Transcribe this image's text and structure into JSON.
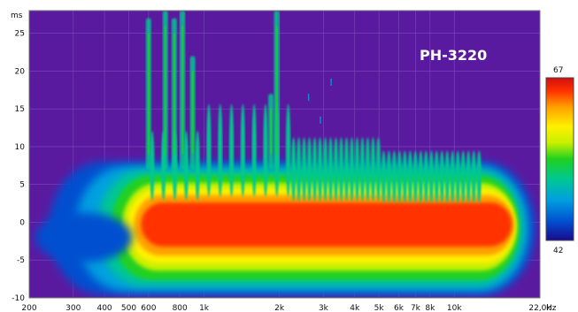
{
  "chart_data": {
    "type": "heatmap",
    "title": "PH-3220",
    "y_unit": "ms",
    "x_unit": "Hz",
    "x_scale": "log",
    "xlim": [
      200,
      22000
    ],
    "ylim": [
      -10,
      28
    ],
    "x_ticks": [
      {
        "value": 200,
        "label": "200"
      },
      {
        "value": 300,
        "label": "300"
      },
      {
        "value": 400,
        "label": "400"
      },
      {
        "value": 500,
        "label": "500"
      },
      {
        "value": 600,
        "label": "600"
      },
      {
        "value": 800,
        "label": "800"
      },
      {
        "value": 1000,
        "label": "1k"
      },
      {
        "value": 2000,
        "label": "2k"
      },
      {
        "value": 3000,
        "label": "3k"
      },
      {
        "value": 4000,
        "label": "4k"
      },
      {
        "value": 5000,
        "label": "5k"
      },
      {
        "value": 6000,
        "label": "6k"
      },
      {
        "value": 7000,
        "label": "7k"
      },
      {
        "value": 8000,
        "label": "8k"
      },
      {
        "value": 10000,
        "label": "10k"
      },
      {
        "value": 22000,
        "label": "22,0k"
      }
    ],
    "y_ticks": [
      {
        "value": 25,
        "label": "25"
      },
      {
        "value": 20,
        "label": "20"
      },
      {
        "value": 15,
        "label": "15"
      },
      {
        "value": 10,
        "label": "10"
      },
      {
        "value": 5,
        "label": "5"
      },
      {
        "value": 0,
        "label": "0"
      },
      {
        "value": -5,
        "label": "-5"
      },
      {
        "value": -10,
        "label": "-10"
      }
    ],
    "grid": true,
    "color_scale": {
      "min": 42,
      "max": 67,
      "min_label": "42",
      "max_label": "67",
      "colors": [
        "#1a0a8c",
        "#0050d0",
        "#00a0e0",
        "#00c890",
        "#20d020",
        "#c8f000",
        "#fff000",
        "#ffa000",
        "#ff3000",
        "#d01010"
      ]
    },
    "background_color": "#5a1aa0",
    "main_band": {
      "f_start": 240,
      "f_end": 21000,
      "t_min": -9,
      "t_max": 7
    }
  }
}
